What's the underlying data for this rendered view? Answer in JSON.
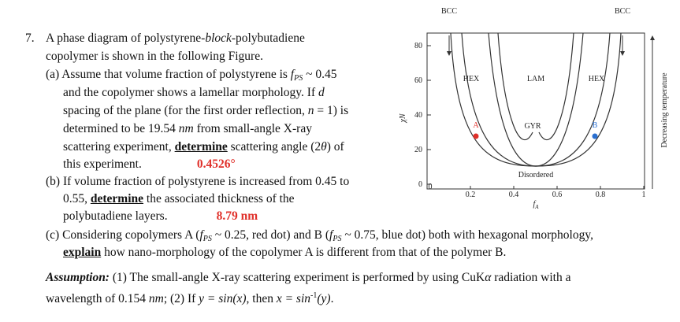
{
  "question": {
    "lines": [
      [
        {
          "text": "7.",
          "style": "num"
        },
        {
          "text": "A phase diagram of polystyrene-"
        },
        {
          "text": "block",
          "style": "i"
        },
        {
          "text": "-polybutadiene"
        }
      ],
      [
        {
          "text": "copolymer is shown in the following Figure."
        }
      ],
      [
        {
          "text": "(a) Assume that volume fraction of polystyrene is "
        },
        {
          "text": "f",
          "style": "i"
        },
        {
          "text": "PS",
          "style": "sub"
        },
        {
          "text": " ~ 0.45"
        }
      ],
      [
        {
          "text": "and the copolymer shows a lamellar morphology. If "
        },
        {
          "text": "d",
          "style": "i"
        }
      ],
      [
        {
          "text": "spacing of the plane (for the first order reflection, "
        },
        {
          "text": "n",
          "style": "i"
        },
        {
          "text": " = 1) is"
        }
      ],
      [
        {
          "text": "determined to be 19.54 "
        },
        {
          "text": "nm",
          "style": "i"
        },
        {
          "text": " from small-angle X-ray"
        }
      ],
      [
        {
          "text": "scattering experiment, "
        },
        {
          "text": "determine",
          "style": "bu"
        },
        {
          "text": " scattering angle (2"
        },
        {
          "text": "θ",
          "style": "i"
        },
        {
          "text": ") of"
        }
      ],
      [
        {
          "text": "this experiment."
        },
        {
          "text": "0.4526°",
          "style": "ans"
        }
      ],
      [
        {
          "text": "(b) If volume fraction of polystyrene is increased from 0.45 to"
        }
      ],
      [
        {
          "text": "0.55, "
        },
        {
          "text": "determine",
          "style": "bu"
        },
        {
          "text": " the associated thickness of the"
        }
      ],
      [
        {
          "text": "polybutadiene layers."
        },
        {
          "text": "8.79 nm",
          "style": "ans"
        }
      ],
      [
        {
          "text": "(c) Considering copolymers A ("
        },
        {
          "text": "f",
          "style": "i"
        },
        {
          "text": "PS",
          "style": "sub"
        },
        {
          "text": " ~ 0.25, red dot) and B ("
        },
        {
          "text": "f",
          "style": "i"
        },
        {
          "text": "PS",
          "style": "sub"
        },
        {
          "text": " ~ 0.75, blue dot) both with hexagonal morphology,"
        }
      ],
      [
        {
          "text": "explain",
          "style": "bu"
        },
        {
          "text": " how nano-morphology of the copolymer A is different from that of the polymer B."
        }
      ],
      [
        {
          "text": "Assumption:",
          "style": "bi"
        },
        {
          "text": " (1) The small-angle X-ray scattering experiment is performed by using CuK"
        },
        {
          "text": "α",
          "style": "i"
        },
        {
          "text": " radiation with a"
        }
      ],
      [
        {
          "text": "wavelength of 0.154 "
        },
        {
          "text": "nm",
          "style": "i"
        },
        {
          "text": "; (2) If "
        },
        {
          "text": "y = sin(x)",
          "style": "i"
        },
        {
          "text": ", then "
        },
        {
          "text": "x = sin",
          "style": "i"
        },
        {
          "text": "-1",
          "style": "sup"
        },
        {
          "text": "(y)",
          "style": "i"
        },
        {
          "text": "."
        }
      ]
    ]
  },
  "figure": {
    "xticks": [
      "0",
      "0.2",
      "0.4",
      "0.6",
      "0.8",
      "1"
    ],
    "yticks": [
      "0",
      "20",
      "40",
      "60",
      "80"
    ],
    "xlabel": "f",
    "xlabel_sub": "A",
    "ylabel": "χN",
    "side_label": "Decreasing temperature",
    "phases": [
      "BCC",
      "BCC",
      "HEX",
      "LAM",
      "HEX",
      "GYR",
      "Disordered"
    ],
    "points": [
      "A",
      "B"
    ]
  }
}
